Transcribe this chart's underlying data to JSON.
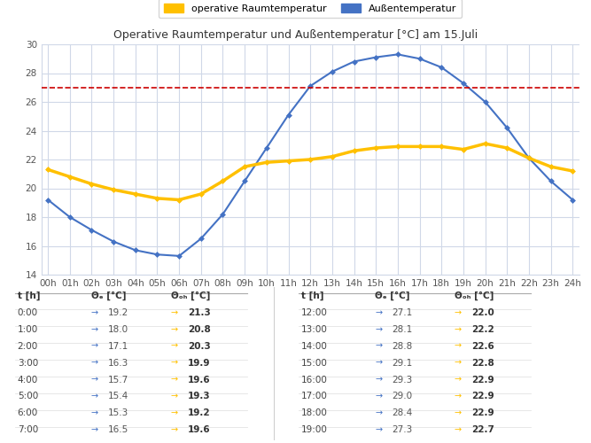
{
  "title": "Operative Raumtemperatur und Außentemperatur [°C] am 15.Juli",
  "ylim": [
    14,
    30
  ],
  "yticks": [
    14,
    16,
    18,
    20,
    22,
    24,
    26,
    28,
    30
  ],
  "dashed_line_y": 27.0,
  "hours": [
    0,
    1,
    2,
    3,
    4,
    5,
    6,
    7,
    8,
    9,
    10,
    11,
    12,
    13,
    14,
    15,
    16,
    17,
    18,
    19,
    20,
    21,
    22,
    23,
    24
  ],
  "theta_e": [
    19.2,
    18.0,
    17.1,
    16.3,
    15.7,
    15.4,
    15.3,
    16.5,
    18.2,
    20.5,
    22.8,
    25.1,
    27.1,
    28.1,
    28.8,
    29.1,
    29.3,
    29.0,
    28.4,
    27.3,
    26.0,
    24.2,
    22.1,
    20.5,
    19.2
  ],
  "theta_op": [
    21.3,
    20.8,
    20.3,
    19.9,
    19.6,
    19.3,
    19.2,
    19.6,
    20.5,
    21.5,
    21.8,
    21.9,
    22.0,
    22.2,
    22.6,
    22.8,
    22.9,
    22.9,
    22.9,
    22.7,
    23.1,
    22.8,
    22.1,
    21.5,
    21.2
  ],
  "color_blue": "#4472c4",
  "color_yellow": "#ffc000",
  "color_dashed": "#cc0000",
  "bg_color": "#ffffff",
  "grid_color": "#d0d8e8",
  "legend_blue": "Außentemperatur",
  "legend_yellow": "operative Raumtemperatur",
  "table_data_left": [
    [
      "0:00",
      "19.2",
      "21.3"
    ],
    [
      "1:00",
      "18.0",
      "20.8"
    ],
    [
      "2:00",
      "17.1",
      "20.3"
    ],
    [
      "3:00",
      "16.3",
      "19.9"
    ],
    [
      "4:00",
      "15.7",
      "19.6"
    ],
    [
      "5:00",
      "15.4",
      "19.3"
    ],
    [
      "6:00",
      "15.3",
      "19.2"
    ],
    [
      "7:00",
      "16.5",
      "19.6"
    ]
  ],
  "table_data_right": [
    [
      "12:00",
      "27.1",
      "22.0"
    ],
    [
      "13:00",
      "28.1",
      "22.2"
    ],
    [
      "14:00",
      "28.8",
      "22.6"
    ],
    [
      "15:00",
      "29.1",
      "22.8"
    ],
    [
      "16:00",
      "29.3",
      "22.9"
    ],
    [
      "17:00",
      "29.0",
      "22.9"
    ],
    [
      "18:00",
      "28.4",
      "22.9"
    ],
    [
      "19:00",
      "27.3",
      "22.7"
    ]
  ],
  "col_headers_left": [
    "t [h]",
    "Θₑ [°C]",
    "Θₒₕ [°C]"
  ],
  "col_headers_right": [
    "t [h]",
    "Θₑ [°C]",
    "Θₒₕ [°C]"
  ],
  "figsize": [
    6.67,
    5.0
  ],
  "dpi": 100
}
